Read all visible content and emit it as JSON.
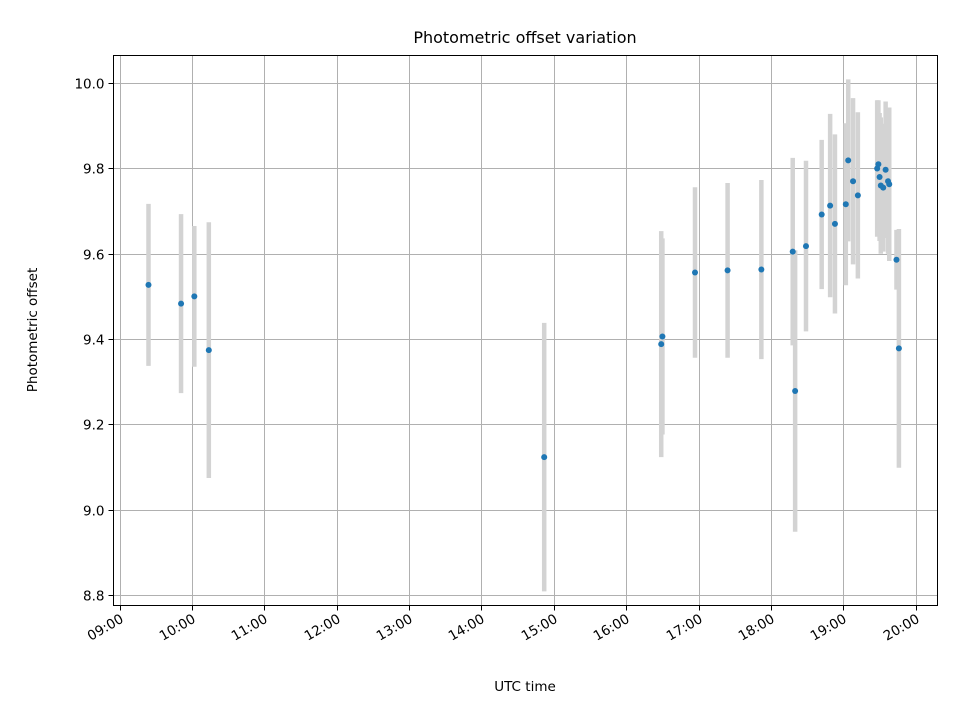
{
  "chart_data": {
    "type": "scatter",
    "title": "Photometric offset variation",
    "xlabel": "UTC time",
    "ylabel": "Photometric offset",
    "grid": true,
    "xlim": [
      "08:55",
      "20:18"
    ],
    "ylim": [
      8.775,
      10.065
    ],
    "x_ticks": [
      "09:00",
      "10:00",
      "11:00",
      "12:00",
      "13:00",
      "14:00",
      "15:00",
      "16:00",
      "17:00",
      "18:00",
      "19:00",
      "20:00"
    ],
    "y_ticks": [
      8.8,
      9.0,
      9.2,
      9.4,
      9.6,
      9.8,
      10.0
    ],
    "y_tick_labels": [
      "8.8",
      "9.0",
      "9.2",
      "9.4",
      "9.6",
      "9.8",
      "10.0"
    ],
    "colors": {
      "points": "#1f77b4",
      "errorbars": "#d3d3d3",
      "grid": "#b0b0b0"
    },
    "points": [
      {
        "x": "09:24",
        "y": 9.527,
        "err": 0.19
      },
      {
        "x": "09:51",
        "y": 9.483,
        "err": 0.21
      },
      {
        "x": "10:02",
        "y": 9.5,
        "err": 0.165
      },
      {
        "x": "10:14",
        "y": 9.374,
        "err": 0.3
      },
      {
        "x": "14:52",
        "y": 9.123,
        "err": 0.315
      },
      {
        "x": "16:29",
        "y": 9.388,
        "err": 0.265
      },
      {
        "x": "16:30",
        "y": 9.406,
        "err": 0.23
      },
      {
        "x": "16:57",
        "y": 9.556,
        "err": 0.2
      },
      {
        "x": "17:24",
        "y": 9.561,
        "err": 0.205
      },
      {
        "x": "17:52",
        "y": 9.563,
        "err": 0.21
      },
      {
        "x": "18:18",
        "y": 9.605,
        "err": 0.22
      },
      {
        "x": "18:20",
        "y": 9.278,
        "err": 0.33
      },
      {
        "x": "18:29",
        "y": 9.618,
        "err": 0.2
      },
      {
        "x": "18:42",
        "y": 9.692,
        "err": 0.175
      },
      {
        "x": "18:49",
        "y": 9.713,
        "err": 0.215
      },
      {
        "x": "18:53",
        "y": 9.67,
        "err": 0.21
      },
      {
        "x": "19:02",
        "y": 9.716,
        "err": 0.19
      },
      {
        "x": "19:04",
        "y": 9.819,
        "err": 0.19
      },
      {
        "x": "19:08",
        "y": 9.77,
        "err": 0.195
      },
      {
        "x": "19:12",
        "y": 9.737,
        "err": 0.195
      },
      {
        "x": "19:28",
        "y": 9.8,
        "err": 0.16
      },
      {
        "x": "19:29",
        "y": 9.81,
        "err": 0.15
      },
      {
        "x": "19:30",
        "y": 9.78,
        "err": 0.15
      },
      {
        "x": "19:31",
        "y": 9.76,
        "err": 0.16
      },
      {
        "x": "19:33",
        "y": 9.755,
        "err": 0.15
      },
      {
        "x": "19:35",
        "y": 9.797,
        "err": 0.16
      },
      {
        "x": "19:37",
        "y": 9.77,
        "err": 0.17
      },
      {
        "x": "19:38",
        "y": 9.763,
        "err": 0.18
      },
      {
        "x": "19:44",
        "y": 9.586,
        "err": 0.07
      },
      {
        "x": "19:46",
        "y": 9.378,
        "err": 0.28
      }
    ]
  }
}
